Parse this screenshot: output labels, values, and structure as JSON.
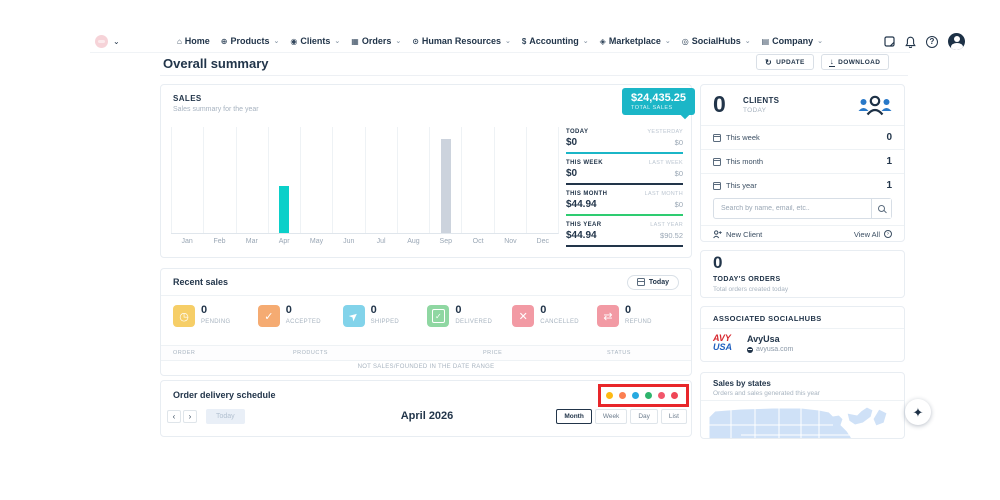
{
  "annotation": {
    "box_color": "#e8262a"
  },
  "topbar": {
    "nav": [
      {
        "label": "Home",
        "icon": "home",
        "caret": false
      },
      {
        "label": "Products",
        "icon": "products",
        "caret": true
      },
      {
        "label": "Clients",
        "icon": "clients",
        "caret": true
      },
      {
        "label": "Orders",
        "icon": "orders",
        "caret": true
      },
      {
        "label": "Human Resources",
        "icon": "human-resources",
        "caret": true
      },
      {
        "label": "Accounting",
        "icon": "accounting",
        "caret": true
      },
      {
        "label": "Marketplace",
        "icon": "marketplace",
        "caret": true
      },
      {
        "label": "SocialHubs",
        "icon": "socialhubs",
        "caret": true
      },
      {
        "label": "Company",
        "icon": "company",
        "caret": true
      }
    ]
  },
  "header": {
    "title": "Overall summary",
    "update_label": "UPDATE",
    "download_label": "DOWNLOAD"
  },
  "sales": {
    "title": "SALES",
    "subtitle": "Sales summary for the year",
    "badge": {
      "amount": "$24,435.25",
      "label": "TOTAL SALES",
      "color": "#1bb6c7"
    },
    "stats": [
      {
        "label": "TODAY",
        "value": "$0",
        "compare_label": "YESTERDAY",
        "compare_value": "$0",
        "underline": "#1bb6c7"
      },
      {
        "label": "THIS WEEK",
        "value": "$0",
        "compare_label": "LAST WEEK",
        "compare_value": "$0",
        "underline": "#22354a"
      },
      {
        "label": "THIS MONTH",
        "value": "$44.94",
        "compare_label": "LAST MONTH",
        "compare_value": "$0",
        "underline": "#2ecc71"
      },
      {
        "label": "THIS YEAR",
        "value": "$44.94",
        "compare_label": "LAST YEAR",
        "compare_value": "$90.52",
        "underline": "#22354a"
      }
    ],
    "chart_data": {
      "type": "bar",
      "title": "SALES",
      "xlabel": "",
      "ylabel": "",
      "ylim": [
        0,
        100
      ],
      "grid": "vertical",
      "categories": [
        "Jan",
        "Feb",
        "Mar",
        "Apr",
        "May",
        "Jun",
        "Jul",
        "Aug",
        "Sep",
        "Oct",
        "Nov",
        "Dec"
      ],
      "series": [
        {
          "name": "This year",
          "color": "#0bd0c9",
          "values": [
            0,
            0,
            0,
            44.94,
            0,
            0,
            0,
            0,
            0,
            0,
            0,
            0
          ]
        },
        {
          "name": "Last year",
          "color": "#ccd3dd",
          "values": [
            0,
            0,
            0,
            0,
            0,
            0,
            0,
            0,
            90.52,
            0,
            0,
            0
          ]
        }
      ]
    }
  },
  "recent_sales": {
    "title": "Recent sales",
    "today_button": "Today",
    "statuses": [
      {
        "count": "0",
        "label": "PENDING",
        "color": "#f6ce67",
        "icon": "clock"
      },
      {
        "count": "0",
        "label": "ACCEPTED",
        "color": "#f5ab72",
        "icon": "check"
      },
      {
        "count": "0",
        "label": "SHIPPED",
        "color": "#82d3ea",
        "icon": "paper-plane"
      },
      {
        "count": "0",
        "label": "DELIVERED",
        "color": "#8fd7a2",
        "icon": "clipboard-check"
      },
      {
        "count": "0",
        "label": "CANCELLED",
        "color": "#f29aa4",
        "icon": "x"
      },
      {
        "count": "0",
        "label": "REFUND",
        "color": "#f29aa4",
        "icon": "repeat"
      }
    ],
    "table_headers": [
      "ORDER",
      "PRODUCTS",
      "PRICE",
      "STATUS"
    ],
    "empty_message": "NOT SALES/FOUNDED IN THE DATE RANGE"
  },
  "schedule": {
    "title": "Order delivery schedule",
    "legend_dots": [
      "#fdb913",
      "#fb7e51",
      "#26a9e0",
      "#2fb46c",
      "#f2566b",
      "#ef4656"
    ],
    "calendar": {
      "title": "April 2026",
      "prev": "‹",
      "next": "›",
      "today_label": "Today",
      "views": [
        "Month",
        "Week",
        "Day",
        "List"
      ],
      "active_view": "Month"
    }
  },
  "clients": {
    "count": "0",
    "title": "CLIENTS",
    "subtitle": "TODAY",
    "rows": [
      {
        "label": "This week",
        "value": "0"
      },
      {
        "label": "This month",
        "value": "1"
      },
      {
        "label": "This year",
        "value": "1"
      }
    ],
    "search_placeholder": "Search by name, email, etc..",
    "new_client_label": "New Client",
    "view_all_label": "View All"
  },
  "todays_orders": {
    "count": "0",
    "title": "TODAY'S ORDERS",
    "subtitle": "Total orders created today"
  },
  "socialhubs": {
    "title": "ASSOCIATED SOCIALHUBS",
    "logo_top": "AVY",
    "logo_bottom": "USA",
    "name": "AvyUsa",
    "domain": "avyusa.com"
  },
  "sales_by_states": {
    "title": "Sales by states",
    "subtitle": "Orders and sales generated this year"
  }
}
